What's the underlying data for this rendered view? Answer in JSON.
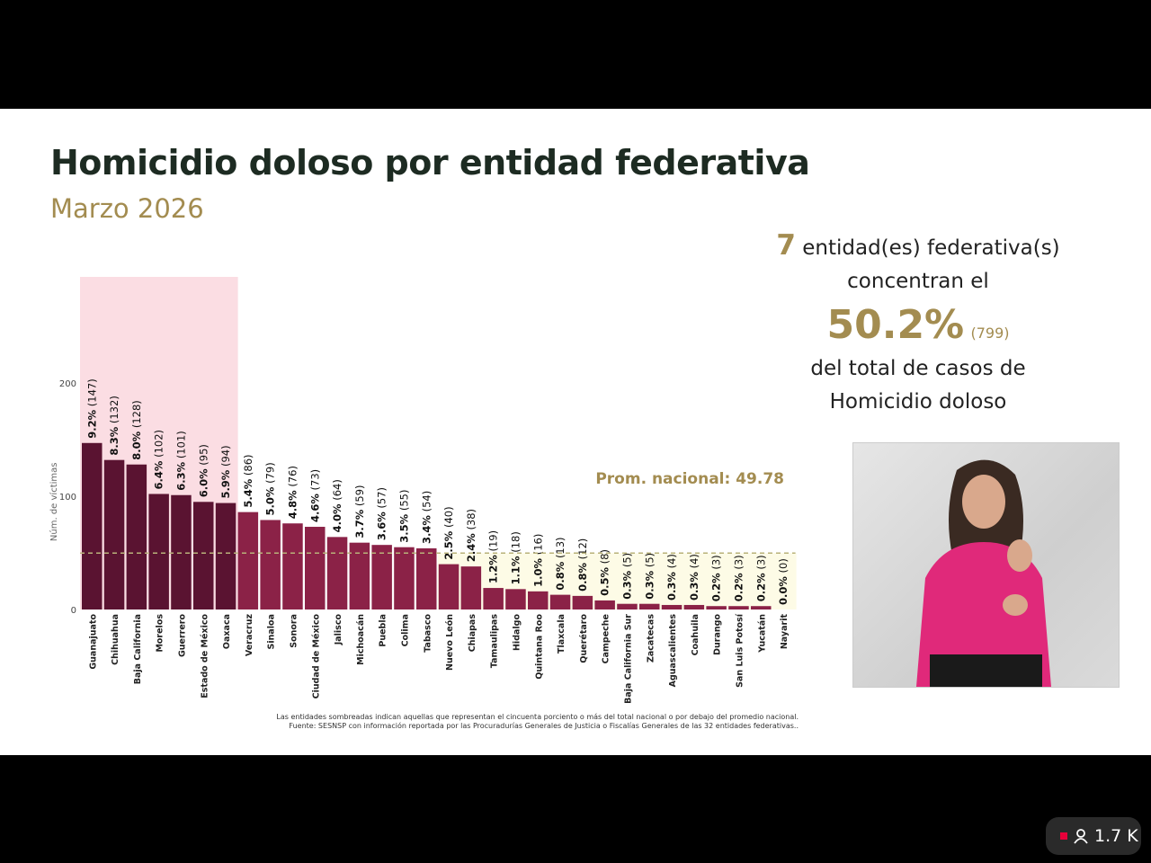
{
  "slide": {
    "title": "Homicidio doloso por entidad federativa",
    "subtitle": "Marzo 2026",
    "summary": {
      "count": "7",
      "line1": "entidad(es) federativa(s)",
      "line2": "concentran el",
      "percent": "50.2%",
      "cases": "(799)",
      "line3": "del total de casos de",
      "line4": "Homicidio doloso"
    },
    "footnote": [
      "Las entidades sombreadas indican aquellas que representan el cincuenta porciento o más del total nacional o por debajo del promedio nacional.",
      "Fuente: SESNSP con información reportada por las Procuradurías Generales de Justicia o Fiscalías Generales de las 32 entidades federativas.."
    ]
  },
  "stream": {
    "viewers": "1.7 K",
    "live_icon": "red-square",
    "viewer_icon": "person-icon"
  },
  "chart_data": {
    "type": "bar",
    "ylabel": "Núm. de víctimas",
    "ylim": [
      0,
      250
    ],
    "yticks": [
      0,
      100,
      200
    ],
    "grid": false,
    "average_label": "Prom. nacional: 49.78",
    "average": 49.78,
    "colors": {
      "top_group": "#5a1331",
      "rest": "#8b2247",
      "top_shade": "#fbdde3",
      "below_avg_shade": "#fdfbe6",
      "avg_line": "#b9b27a"
    },
    "categories": [
      "Guanajuato",
      "Chihuahua",
      "Baja California",
      "Morelos",
      "Guerrero",
      "Estado de México",
      "Oaxaca",
      "Veracruz",
      "Sinaloa",
      "Sonora",
      "Ciudad de México",
      "Jalisco",
      "Michoacán",
      "Puebla",
      "Colima",
      "Tabasco",
      "Nuevo León",
      "Chiapas",
      "Tamaulipas",
      "Hidalgo",
      "Quintana Roo",
      "Tlaxcala",
      "Querétaro",
      "Campeche",
      "Baja California Sur",
      "Zacatecas",
      "Aguascalientes",
      "Coahuila",
      "Durango",
      "San Luis Potosí",
      "Yucatán",
      "Nayarit"
    ],
    "values": [
      147,
      132,
      128,
      102,
      101,
      95,
      94,
      86,
      79,
      76,
      73,
      64,
      59,
      57,
      55,
      54,
      40,
      38,
      19,
      18,
      16,
      13,
      12,
      8,
      5,
      5,
      4,
      4,
      3,
      3,
      3,
      0
    ],
    "percents": [
      "9.2%",
      "8.3%",
      "8.0%",
      "6.4%",
      "6.3%",
      "6.0%",
      "5.9%",
      "5.4%",
      "5.0%",
      "4.8%",
      "4.6%",
      "4.0%",
      "3.7%",
      "3.6%",
      "3.5%",
      "3.4%",
      "2.5%",
      "2.4%",
      "1.2%",
      "1.1%",
      "1.0%",
      "0.8%",
      "0.8%",
      "0.5%",
      "0.3%",
      "0.3%",
      "0.3%",
      "0.3%",
      "0.2%",
      "0.2%",
      "0.2%",
      "0.0%"
    ],
    "top_group_count": 7
  }
}
